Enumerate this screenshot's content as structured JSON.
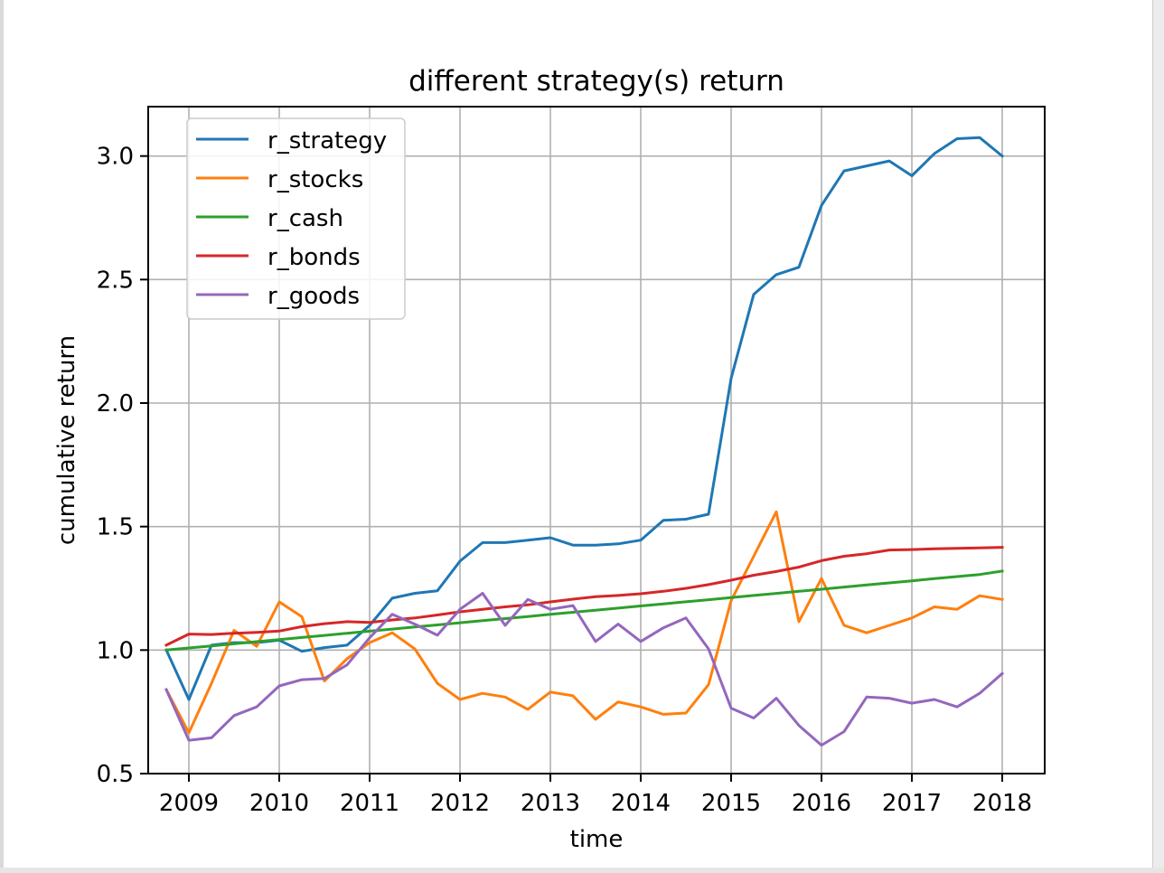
{
  "chart_data": {
    "type": "line",
    "title": "different strategy(s) return",
    "xlabel": "time",
    "ylabel": "cumulative return",
    "xlim": [
      2008.55,
      2018.47
    ],
    "ylim": [
      0.5,
      3.2
    ],
    "xticks": [
      2009,
      2010,
      2011,
      2012,
      2013,
      2014,
      2015,
      2016,
      2017,
      2018
    ],
    "yticks": [
      0.5,
      1.0,
      1.5,
      2.0,
      2.5,
      3.0
    ],
    "ytick_labels": [
      "0.5",
      "1.0",
      "1.5",
      "2.0",
      "2.5",
      "3.0"
    ],
    "grid": true,
    "legend_position": "upper-left",
    "x": [
      2008.75,
      2009.0,
      2009.25,
      2009.5,
      2009.75,
      2010.0,
      2010.25,
      2010.5,
      2010.75,
      2011.0,
      2011.25,
      2011.5,
      2011.75,
      2012.0,
      2012.25,
      2012.5,
      2012.75,
      2013.0,
      2013.25,
      2013.5,
      2013.75,
      2014.0,
      2014.25,
      2014.5,
      2014.75,
      2015.0,
      2015.25,
      2015.5,
      2015.75,
      2016.0,
      2016.25,
      2016.5,
      2016.75,
      2017.0,
      2017.25,
      2017.5,
      2017.75,
      2018.0
    ],
    "series": [
      {
        "name": "r_strategy",
        "color": "#1f77b4",
        "values": [
          1.0,
          0.8,
          1.02,
          1.03,
          1.03,
          1.04,
          0.995,
          1.01,
          1.02,
          1.1,
          1.21,
          1.23,
          1.24,
          1.36,
          1.435,
          1.435,
          1.445,
          1.455,
          1.425,
          1.425,
          1.43,
          1.445,
          1.525,
          1.53,
          1.55,
          2.1,
          2.44,
          2.52,
          2.55,
          2.8,
          2.94,
          2.96,
          2.98,
          2.92,
          3.01,
          3.07,
          3.075,
          3.0
        ]
      },
      {
        "name": "r_stocks",
        "color": "#ff7f0e",
        "values": [
          0.84,
          0.665,
          0.865,
          1.08,
          1.015,
          1.195,
          1.135,
          0.875,
          0.965,
          1.03,
          1.07,
          1.005,
          0.865,
          0.8,
          0.825,
          0.81,
          0.76,
          0.83,
          0.815,
          0.72,
          0.79,
          0.77,
          0.74,
          0.745,
          0.86,
          1.2,
          1.38,
          1.56,
          1.115,
          1.29,
          1.1,
          1.07,
          1.1,
          1.13,
          1.175,
          1.165,
          1.22,
          1.205
        ]
      },
      {
        "name": "r_cash",
        "color": "#2ca02c",
        "values": [
          1.0,
          1.0085,
          1.017,
          1.0255,
          1.034,
          1.0425,
          1.051,
          1.0595,
          1.068,
          1.0765,
          1.085,
          1.0935,
          1.102,
          1.1105,
          1.119,
          1.1275,
          1.136,
          1.1445,
          1.153,
          1.1615,
          1.17,
          1.1785,
          1.187,
          1.1955,
          1.204,
          1.2125,
          1.221,
          1.2295,
          1.238,
          1.2465,
          1.255,
          1.2635,
          1.272,
          1.2805,
          1.289,
          1.2975,
          1.306,
          1.32
        ]
      },
      {
        "name": "r_bonds",
        "color": "#d62728",
        "values": [
          1.02,
          1.065,
          1.063,
          1.068,
          1.072,
          1.077,
          1.095,
          1.107,
          1.115,
          1.112,
          1.122,
          1.13,
          1.142,
          1.155,
          1.165,
          1.175,
          1.183,
          1.195,
          1.206,
          1.216,
          1.221,
          1.228,
          1.238,
          1.25,
          1.265,
          1.283,
          1.303,
          1.318,
          1.336,
          1.362,
          1.38,
          1.39,
          1.405,
          1.407,
          1.41,
          1.412,
          1.414,
          1.416
        ]
      },
      {
        "name": "r_goods",
        "color": "#9467bd",
        "values": [
          0.84,
          0.635,
          0.645,
          0.735,
          0.77,
          0.855,
          0.88,
          0.885,
          0.94,
          1.05,
          1.145,
          1.105,
          1.06,
          1.165,
          1.23,
          1.1,
          1.205,
          1.165,
          1.18,
          1.035,
          1.105,
          1.035,
          1.09,
          1.13,
          1.005,
          0.765,
          0.725,
          0.805,
          0.695,
          0.615,
          0.67,
          0.81,
          0.805,
          0.785,
          0.8,
          0.77,
          0.825,
          0.905
        ]
      }
    ]
  }
}
